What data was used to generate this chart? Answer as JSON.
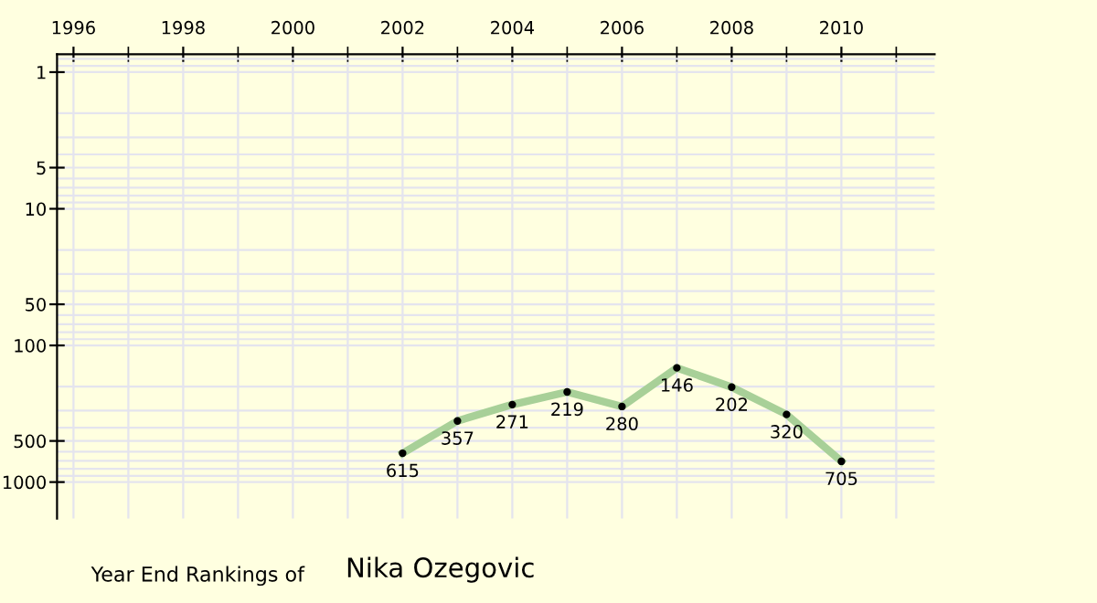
{
  "chart_data": {
    "type": "line",
    "x": [
      2002,
      2003,
      2004,
      2005,
      2006,
      2007,
      2008,
      2009,
      2010
    ],
    "series": [
      {
        "color": "#a8d098",
        "values": [
          615,
          357,
          271,
          219,
          280,
          146,
          202,
          320,
          705
        ]
      }
    ],
    "log": "y",
    "ylim": [
      1850,
      0.74
    ],
    "yticks": [
      1,
      5,
      10,
      50,
      100,
      500,
      1000
    ],
    "xlim": [
      1995.7,
      2011.7
    ],
    "xticks": [
      1996,
      1998,
      2000,
      2002,
      2004,
      2006,
      2008,
      2010
    ],
    "grid": true,
    "marker": "circle",
    "line_style": "solid",
    "data_labels": true,
    "annotations": [
      "Year End Rankings of",
      "Nika Ozegovic"
    ]
  }
}
